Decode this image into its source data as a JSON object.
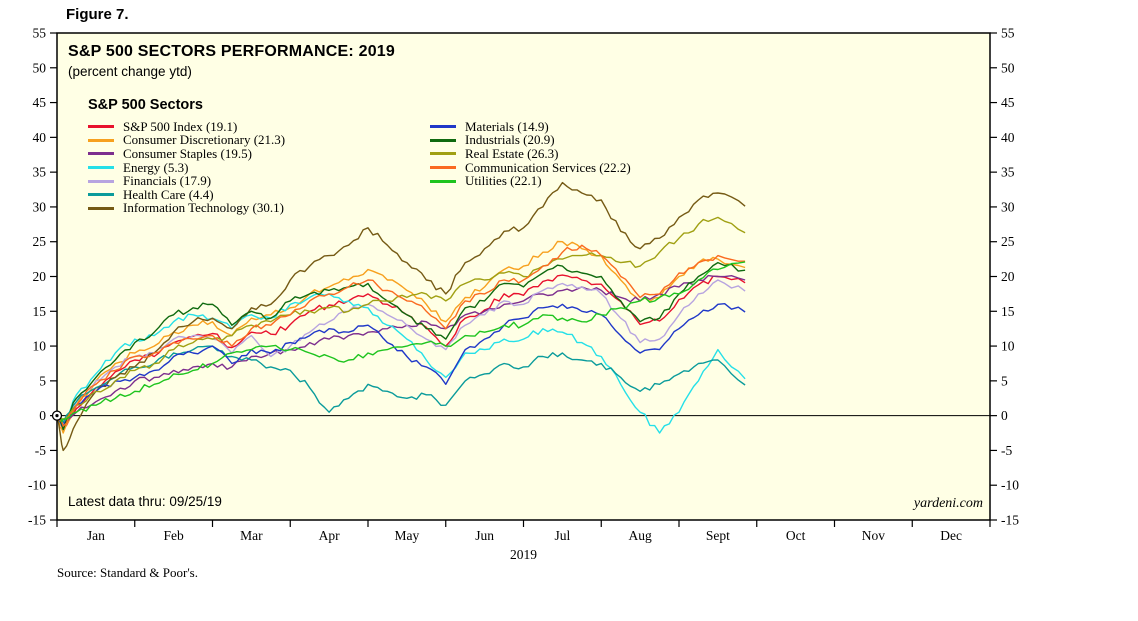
{
  "figure_label": "Figure 7.",
  "chart": {
    "title": "S&P 500 SECTORS PERFORMANCE: 2019",
    "subtitle": "(percent change ytd)",
    "legend_title": "S&P 500 Sectors",
    "latest_note": "Latest data thru: 09/25/19",
    "watermark": "yardeni.com",
    "year_label": "2019",
    "source": "Source: Standard & Poor's."
  },
  "colors": {
    "plot_bg": "#ffffe5",
    "frame": "#000000"
  },
  "chart_data": {
    "type": "line",
    "title": "S&P 500 SECTORS PERFORMANCE: 2019",
    "subtitle": "(percent change ytd)",
    "ylabel": "percent change ytd",
    "ylim": [
      -15,
      55
    ],
    "ytick_step": 5,
    "grid": false,
    "legend_position": "top-left",
    "legend_split": 7,
    "months": [
      "Jan",
      "Feb",
      "Mar",
      "Apr",
      "May",
      "Jun",
      "Jul",
      "Aug",
      "Sept",
      "Oct",
      "Nov",
      "Dec"
    ],
    "x_months": [
      0,
      0.08,
      0.25,
      0.5,
      0.75,
      1.0,
      1.25,
      1.5,
      1.75,
      2.0,
      2.25,
      2.5,
      2.75,
      3.0,
      3.25,
      3.5,
      3.75,
      4.0,
      4.25,
      4.5,
      4.75,
      5.0,
      5.25,
      5.5,
      5.75,
      6.0,
      6.25,
      6.5,
      6.75,
      7.0,
      7.25,
      7.5,
      7.75,
      8.0,
      8.25,
      8.5,
      8.85
    ],
    "series": [
      {
        "id": "sp500-index",
        "name": "S&P 500 Index (19.1)",
        "final": 19.1,
        "color": "#e8112d",
        "values": [
          0,
          -2.0,
          1.0,
          4.0,
          6.3,
          8.0,
          8.5,
          10.5,
          11.4,
          11.8,
          9.8,
          12.0,
          11.7,
          13.1,
          15.0,
          15.9,
          16.5,
          17.5,
          16.0,
          14.5,
          12.7,
          10.0,
          14.0,
          15.2,
          17.5,
          17.3,
          19.3,
          20.2,
          19.5,
          18.9,
          16.4,
          13.1,
          13.6,
          16.7,
          18.8,
          20.0,
          19.1
        ]
      },
      {
        "id": "consumer-discretionary",
        "name": "Consumer Discretionary (21.3)",
        "final": 21.3,
        "color": "#f7a01e",
        "values": [
          0,
          -2.5,
          1.5,
          5.0,
          7.5,
          9.0,
          10.0,
          12.0,
          13.0,
          13.5,
          11.5,
          14.0,
          14.5,
          15.5,
          17.5,
          18.5,
          19.5,
          21.0,
          19.5,
          18.0,
          16.0,
          13.5,
          17.0,
          18.5,
          21.0,
          21.5,
          23.5,
          25.0,
          24.0,
          23.0,
          19.5,
          16.5,
          17.0,
          20.0,
          22.0,
          22.5,
          21.3
        ]
      },
      {
        "id": "consumer-staples",
        "name": "Consumer Staples (19.5)",
        "final": 19.5,
        "color": "#7d2e8e",
        "values": [
          0,
          -1.0,
          0.5,
          2.0,
          3.5,
          5.0,
          5.5,
          6.5,
          7.0,
          7.5,
          7.0,
          8.5,
          9.0,
          9.5,
          10.5,
          11.0,
          11.5,
          12.0,
          12.5,
          13.0,
          13.5,
          12.5,
          14.5,
          15.0,
          16.0,
          16.5,
          17.5,
          18.0,
          18.5,
          18.0,
          17.0,
          16.5,
          17.5,
          18.5,
          19.5,
          20.0,
          19.5
        ]
      },
      {
        "id": "energy",
        "name": "Energy (5.3)",
        "final": 5.3,
        "color": "#25e0e8",
        "values": [
          0,
          -1.5,
          3.0,
          6.0,
          9.0,
          11.0,
          11.5,
          13.5,
          14.5,
          14.0,
          12.5,
          14.5,
          14.0,
          16.0,
          17.0,
          17.5,
          16.5,
          15.5,
          13.0,
          11.0,
          8.0,
          5.5,
          9.0,
          9.5,
          11.0,
          11.0,
          12.5,
          12.0,
          10.5,
          8.5,
          4.5,
          0.5,
          -2.5,
          0.5,
          5.0,
          9.5,
          5.3
        ]
      },
      {
        "id": "financials",
        "name": "Financials (17.9)",
        "final": 17.9,
        "color": "#b7a4e0",
        "values": [
          0,
          -1.5,
          2.0,
          5.0,
          7.0,
          8.5,
          9.0,
          11.0,
          11.5,
          11.0,
          9.0,
          11.5,
          8.5,
          10.0,
          12.0,
          13.5,
          15.0,
          16.0,
          14.5,
          13.0,
          11.0,
          9.5,
          13.0,
          14.5,
          16.5,
          16.0,
          18.0,
          19.0,
          18.5,
          17.5,
          14.0,
          10.5,
          11.0,
          14.5,
          17.5,
          19.5,
          17.9
        ]
      },
      {
        "id": "health-care",
        "name": "Health Care (4.4)",
        "final": 4.4,
        "color": "#0a9b9b",
        "values": [
          0,
          -1.0,
          2.0,
          4.0,
          5.5,
          7.0,
          7.5,
          9.0,
          9.5,
          10.0,
          8.5,
          8.0,
          7.0,
          6.5,
          4.0,
          0.5,
          2.5,
          4.5,
          3.5,
          2.5,
          3.0,
          1.5,
          5.0,
          6.0,
          7.5,
          7.0,
          8.5,
          9.0,
          8.0,
          7.5,
          5.5,
          3.5,
          4.5,
          6.0,
          7.5,
          8.0,
          4.4
        ]
      },
      {
        "id": "information-technology",
        "name": "Information Technology (30.1)",
        "final": 30.1,
        "color": "#755a14",
        "values": [
          0,
          -5.0,
          -1.0,
          3.5,
          5.5,
          7.0,
          9.0,
          12.0,
          13.5,
          14.0,
          12.5,
          15.5,
          16.0,
          19.5,
          21.5,
          23.0,
          24.5,
          27.0,
          24.5,
          22.0,
          19.5,
          17.5,
          22.0,
          24.0,
          26.5,
          27.0,
          30.0,
          33.5,
          32.0,
          31.0,
          26.5,
          24.0,
          25.5,
          28.5,
          31.0,
          32.0,
          30.1
        ]
      },
      {
        "id": "materials",
        "name": "Materials (14.9)",
        "final": 14.9,
        "color": "#2038c8",
        "values": [
          0,
          -1.5,
          1.5,
          3.5,
          5.0,
          5.5,
          6.5,
          8.5,
          9.0,
          10.0,
          7.5,
          9.5,
          9.0,
          10.5,
          11.5,
          12.5,
          12.0,
          13.0,
          10.5,
          8.5,
          7.0,
          4.5,
          9.5,
          11.0,
          13.0,
          14.0,
          15.5,
          16.0,
          15.0,
          14.5,
          11.5,
          9.0,
          9.5,
          12.5,
          14.5,
          16.0,
          14.9
        ]
      },
      {
        "id": "industrials",
        "name": "Industrials (20.9)",
        "final": 20.9,
        "color": "#0f6a0f",
        "values": [
          0,
          -2.0,
          2.5,
          5.5,
          8.0,
          10.5,
          12.0,
          14.5,
          15.5,
          16.0,
          13.0,
          15.0,
          14.0,
          16.5,
          17.5,
          18.0,
          18.5,
          19.0,
          16.5,
          14.5,
          12.5,
          11.0,
          15.5,
          16.5,
          19.0,
          18.5,
          20.5,
          21.5,
          20.5,
          20.0,
          16.5,
          13.5,
          14.0,
          17.5,
          20.0,
          22.0,
          20.9
        ]
      },
      {
        "id": "real-estate",
        "name": "Real Estate (26.3)",
        "final": 26.3,
        "color": "#a0a012",
        "values": [
          0,
          -0.5,
          1.5,
          3.5,
          5.0,
          6.5,
          7.5,
          9.5,
          10.5,
          11.0,
          11.5,
          13.0,
          13.5,
          14.5,
          15.0,
          15.5,
          15.0,
          16.0,
          16.5,
          17.0,
          17.5,
          16.5,
          19.0,
          19.5,
          20.5,
          20.0,
          21.5,
          22.5,
          23.0,
          23.0,
          22.0,
          21.5,
          23.5,
          25.5,
          27.5,
          28.5,
          26.3
        ]
      },
      {
        "id": "communication-services",
        "name": "Communication Services (22.2)",
        "final": 22.2,
        "color": "#fa6a20",
        "values": [
          0,
          -1.5,
          1.5,
          4.5,
          6.5,
          8.5,
          9.0,
          10.5,
          11.0,
          11.5,
          10.0,
          12.5,
          13.0,
          14.5,
          16.5,
          17.5,
          18.5,
          19.5,
          18.0,
          16.5,
          15.0,
          12.5,
          16.5,
          17.5,
          19.5,
          19.5,
          21.5,
          23.5,
          24.5,
          23.0,
          20.0,
          17.0,
          17.5,
          20.5,
          22.0,
          23.0,
          22.2
        ]
      },
      {
        "id": "utilities",
        "name": "Utilities (22.1)",
        "final": 22.1,
        "color": "#1ec41e",
        "values": [
          0,
          -0.5,
          0.5,
          1.5,
          2.5,
          3.5,
          4.5,
          6.0,
          6.5,
          7.5,
          9.0,
          9.5,
          10.0,
          9.5,
          9.0,
          8.5,
          8.0,
          9.0,
          9.5,
          10.0,
          10.5,
          10.0,
          11.5,
          12.0,
          13.0,
          13.0,
          14.5,
          14.0,
          13.5,
          14.5,
          15.5,
          16.5,
          17.0,
          17.5,
          19.5,
          21.0,
          22.1
        ]
      }
    ]
  }
}
